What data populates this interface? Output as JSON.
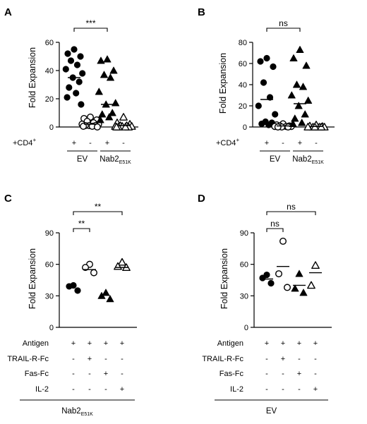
{
  "chart_data": [
    {
      "panel": "A",
      "type": "scatter",
      "ylabel": "Fold Expansion",
      "ylim": [
        0,
        60
      ],
      "yticks": [
        0,
        20,
        40,
        60
      ],
      "row_label": "+CD4+",
      "row_label_main": "+CD4",
      "row_label_sup": "+",
      "row_signs": [
        "+",
        "-",
        "+",
        "-"
      ],
      "groups": [
        {
          "label": "EV",
          "sub": ""
        },
        {
          "label": "Nab2",
          "sub": "E51K"
        }
      ],
      "significance": [
        {
          "from": 0,
          "to": 2,
          "label": "***"
        }
      ],
      "series": [
        {
          "marker": "filled-circle",
          "mean": 35,
          "values": [
            55,
            52,
            50,
            47,
            44,
            41,
            38,
            35,
            32,
            28,
            24,
            21,
            16
          ]
        },
        {
          "marker": "open-circle",
          "mean": 2,
          "values": [
            7,
            6,
            5,
            4,
            3,
            2,
            2,
            1,
            1,
            1,
            0.5,
            0.5,
            0
          ]
        },
        {
          "marker": "filled-triangle",
          "mean": 16,
          "values": [
            48,
            47,
            40,
            37,
            35,
            25,
            17,
            16,
            10,
            9,
            7,
            5
          ]
        },
        {
          "marker": "open-triangle",
          "mean": 1,
          "values": [
            7,
            3,
            2,
            1,
            1,
            0.5,
            0.5,
            0.5,
            0,
            0,
            0,
            0
          ]
        }
      ]
    },
    {
      "panel": "B",
      "type": "scatter",
      "ylabel": "Fold Expansion",
      "ylim": [
        0,
        80
      ],
      "yticks": [
        0,
        20,
        40,
        60,
        80
      ],
      "row_label": "+CD4+",
      "row_label_main": "+CD4",
      "row_label_sup": "+",
      "row_signs": [
        "+",
        "-",
        "+",
        "-"
      ],
      "groups": [
        {
          "label": "EV",
          "sub": ""
        },
        {
          "label": "Nab2",
          "sub": "E51K"
        }
      ],
      "significance": [
        {
          "from": 0,
          "to": 2,
          "label": "ns"
        }
      ],
      "series": [
        {
          "marker": "filled-circle",
          "mean": 26,
          "values": [
            65,
            62,
            57,
            42,
            28,
            20,
            12,
            5,
            4,
            3,
            2
          ]
        },
        {
          "marker": "open-circle",
          "mean": 1,
          "values": [
            3,
            2,
            1,
            1,
            0.5,
            0.5,
            0.5,
            0,
            0,
            0
          ]
        },
        {
          "marker": "filled-triangle",
          "mean": 22,
          "values": [
            73,
            65,
            58,
            40,
            38,
            30,
            25,
            20,
            12,
            8,
            4,
            3
          ]
        },
        {
          "marker": "open-triangle",
          "mean": 0.5,
          "values": [
            2,
            1,
            0.5,
            0,
            0,
            0,
            0,
            0,
            0
          ]
        }
      ]
    },
    {
      "panel": "C",
      "type": "scatter",
      "ylabel": "Fold Expansion",
      "ylim": [
        0,
        90
      ],
      "yticks": [
        0,
        30,
        60,
        90
      ],
      "treatment_rows": [
        {
          "label": "Antigen",
          "signs": [
            "+",
            "+",
            "+",
            "+"
          ]
        },
        {
          "label": "TRAIL-R-Fc",
          "signs": [
            "-",
            "+",
            "-",
            "-"
          ]
        },
        {
          "label": "Fas-Fc",
          "signs": [
            "-",
            "-",
            "+",
            "-"
          ]
        },
        {
          "label": "IL-2",
          "signs": [
            "-",
            "-",
            "-",
            "+"
          ]
        }
      ],
      "group_label": {
        "label": "Nab2",
        "sub": "E51K"
      },
      "significance": [
        {
          "from": 0,
          "to": 1,
          "label": "**"
        },
        {
          "from": 0,
          "to": 3,
          "label": "**"
        }
      ],
      "series": [
        {
          "marker": "filled-circle",
          "mean": null,
          "values": [
            40,
            39,
            35
          ]
        },
        {
          "marker": "open-circle",
          "mean": 55,
          "values": [
            60,
            57,
            52
          ]
        },
        {
          "marker": "filled-triangle",
          "mean": null,
          "values": [
            33,
            30,
            27
          ]
        },
        {
          "marker": "open-triangle",
          "mean": 57,
          "values": [
            62,
            58,
            57
          ]
        }
      ]
    },
    {
      "panel": "D",
      "type": "scatter",
      "ylabel": "Fold Expansion",
      "ylim": [
        0,
        90
      ],
      "yticks": [
        0,
        30,
        60,
        90
      ],
      "treatment_rows": [
        {
          "label": "Antigen",
          "signs": [
            "+",
            "+",
            "+",
            "+"
          ]
        },
        {
          "label": "TRAIL-R-Fc",
          "signs": [
            "-",
            "+",
            "-",
            "-"
          ]
        },
        {
          "label": "Fas-Fc",
          "signs": [
            "-",
            "-",
            "+",
            "-"
          ]
        },
        {
          "label": "IL-2",
          "signs": [
            "-",
            "-",
            "-",
            "+"
          ]
        }
      ],
      "group_label": {
        "label": "EV",
        "sub": ""
      },
      "significance": [
        {
          "from": 0,
          "to": 1,
          "label": "ns"
        },
        {
          "from": 0,
          "to": 3,
          "label": "ns"
        }
      ],
      "series": [
        {
          "marker": "filled-circle",
          "mean": 46,
          "values": [
            50,
            47,
            42
          ]
        },
        {
          "marker": "open-circle",
          "mean": 58,
          "values": [
            82,
            51,
            38
          ]
        },
        {
          "marker": "filled-triangle",
          "mean": 40,
          "values": [
            51,
            37,
            33
          ]
        },
        {
          "marker": "open-triangle",
          "mean": 52,
          "values": [
            59,
            40
          ]
        }
      ]
    }
  ]
}
